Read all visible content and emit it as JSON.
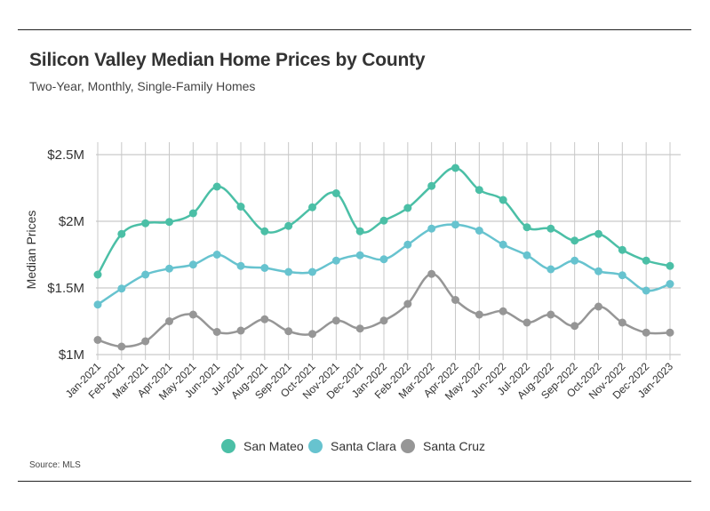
{
  "header": {
    "title": "Silicon Valley Median Home Prices by County",
    "subtitle": "Two-Year, Monthly, Single-Family Homes"
  },
  "footer": {
    "source": "Source:  MLS"
  },
  "chart_data": {
    "type": "line",
    "title": "Silicon Valley Median Home Prices by County",
    "subtitle": "Two-Year, Monthly, Single-Family Homes",
    "ylabel": "Median Prices",
    "xlabel": "",
    "ylim": [
      1000000,
      2500000
    ],
    "yticks": [
      {
        "value": 1000000,
        "label": "$1M"
      },
      {
        "value": 1500000,
        "label": "$1.5M"
      },
      {
        "value": 2000000,
        "label": "$2M"
      },
      {
        "value": 2500000,
        "label": "$2.5M"
      }
    ],
    "grid": true,
    "legend_position": "bottom",
    "categories": [
      "Jan-2021",
      "Feb-2021",
      "Mar-2021",
      "Apr-2021",
      "May-2021",
      "Jun-2021",
      "Jul-2021",
      "Aug-2021",
      "Sep-2021",
      "Oct-2021",
      "Nov-2021",
      "Dec-2021",
      "Jan-2022",
      "Feb-2022",
      "Mar-2022",
      "Apr-2022",
      "May-2022",
      "Jun-2022",
      "Jul-2022",
      "Aug-2022",
      "Sep-2022",
      "Oct-2022",
      "Nov-2022",
      "Dec-2022",
      "Jan-2023"
    ],
    "series": [
      {
        "name": "San Mateo",
        "color": "#4bbfa6",
        "values": [
          1600000,
          1905000,
          1985000,
          1995000,
          2060000,
          2260000,
          2110000,
          1925000,
          1965000,
          2105000,
          2210000,
          1925000,
          2005000,
          2100000,
          2265000,
          2400000,
          2235000,
          2160000,
          1955000,
          1945000,
          1855000,
          1905000,
          1785000,
          1705000,
          1665000
        ]
      },
      {
        "name": "Santa Clara",
        "color": "#67c3cf",
        "values": [
          1375000,
          1495000,
          1600000,
          1645000,
          1675000,
          1750000,
          1665000,
          1650000,
          1620000,
          1620000,
          1705000,
          1745000,
          1715000,
          1825000,
          1945000,
          1975000,
          1930000,
          1825000,
          1745000,
          1640000,
          1705000,
          1625000,
          1595000,
          1480000,
          1530000
        ]
      },
      {
        "name": "Santa Cruz",
        "color": "#969696",
        "values": [
          1110000,
          1060000,
          1100000,
          1250000,
          1300000,
          1170000,
          1180000,
          1265000,
          1175000,
          1155000,
          1255000,
          1195000,
          1255000,
          1380000,
          1605000,
          1410000,
          1300000,
          1325000,
          1240000,
          1300000,
          1215000,
          1360000,
          1240000,
          1165000,
          1165000
        ]
      }
    ]
  }
}
